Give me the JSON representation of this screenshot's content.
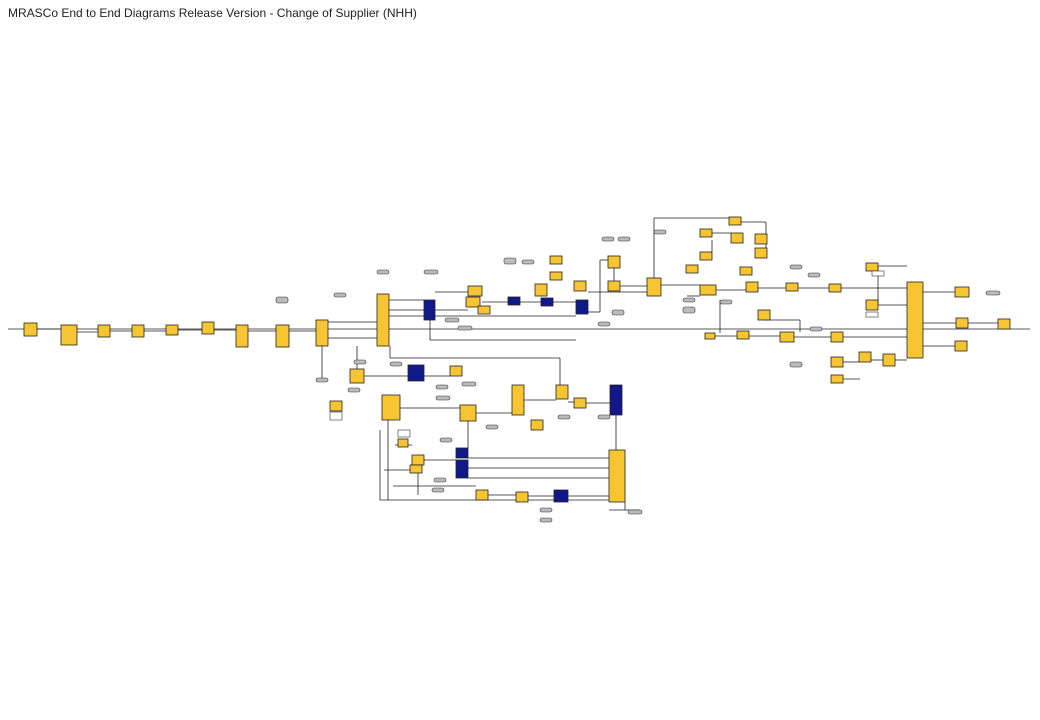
{
  "header": {
    "title": "MRASCo End to End Diagrams Release Version - Change of Supplier (NHH)"
  }
}
